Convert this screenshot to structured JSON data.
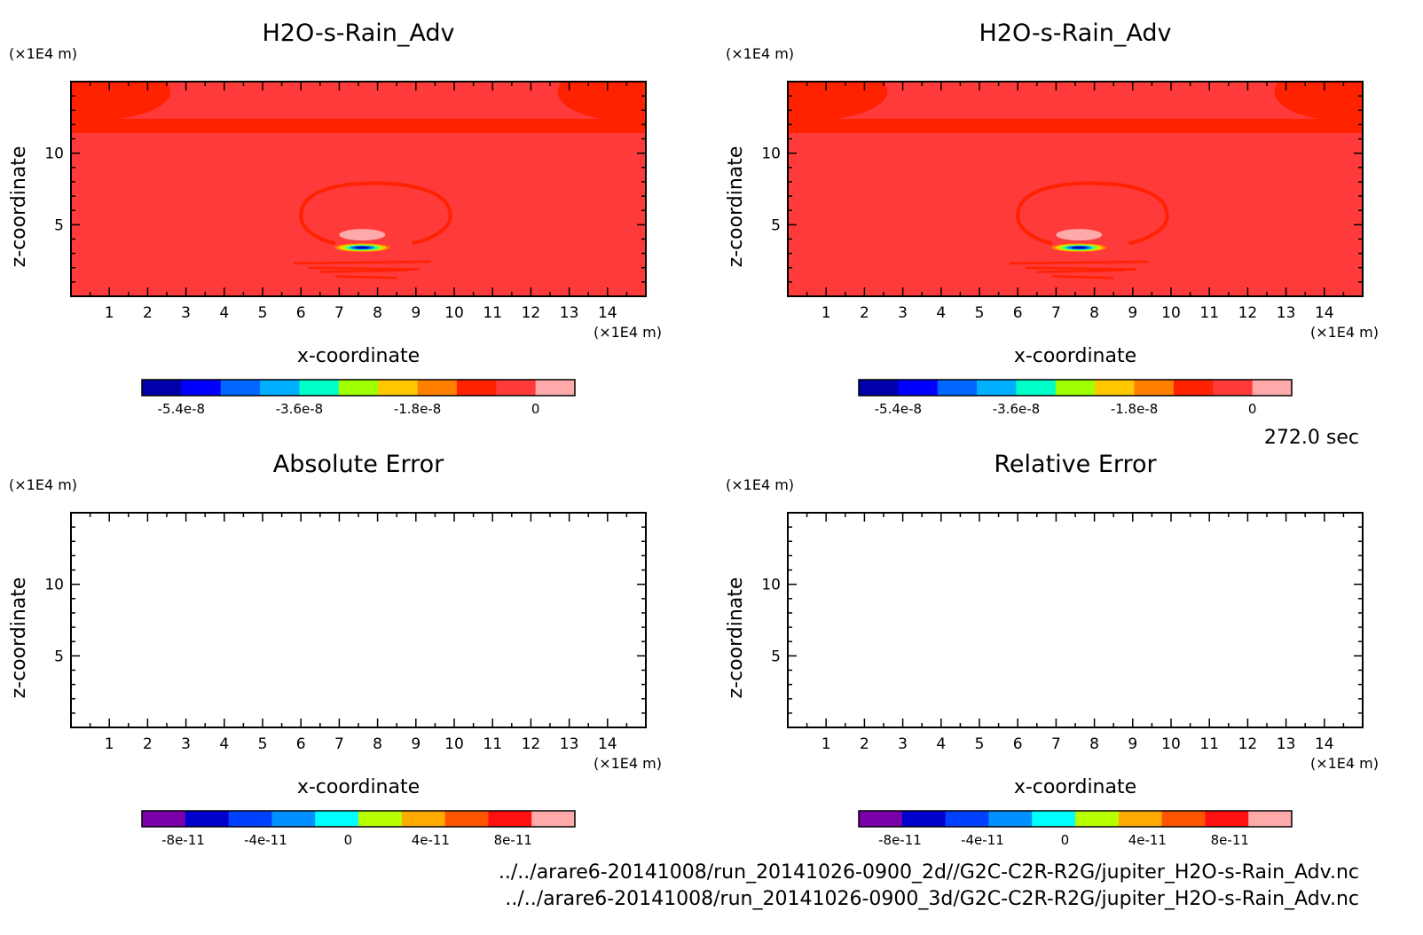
{
  "time_label": "272.0 sec",
  "files": [
    "../../arare6-20141008/run_20141026-0900_2d//G2C-C2R-R2G/jupiter_H2O-s-Rain_Adv.nc",
    "../../arare6-20141008/run_20141026-0900_3d/G2C-C2R-R2G/jupiter_H2O-s-Rain_Adv.nc"
  ],
  "colors": {
    "field_background": "#ff3a3a",
    "field_band": "#ff2200",
    "field_highlight": "#ffaaaa",
    "frame": "#000000"
  },
  "chart_data": [
    {
      "type": "heatmap",
      "title": "H2O-s-Rain_Adv",
      "xlabel": "x-coordinate",
      "ylabel": "z-coordinate",
      "x_unit": "(×1E4 m)",
      "y_unit": "(×1E4 m)",
      "xlim": [
        0,
        15
      ],
      "ylim": [
        0,
        15
      ],
      "xticks": [
        1,
        2,
        3,
        4,
        5,
        6,
        7,
        8,
        9,
        10,
        11,
        12,
        13,
        14
      ],
      "yticks": [
        5,
        10
      ],
      "filled": true,
      "colorbar": {
        "colors": [
          "#0000aa",
          "#0000ff",
          "#0066ff",
          "#00b0ff",
          "#00ffc8",
          "#a0ff00",
          "#ffc800",
          "#ff8000",
          "#ff2200",
          "#ff3a3a",
          "#ffaaaa"
        ],
        "ticks": [
          "-5.4e-8",
          "-3.6e-8",
          "-1.8e-8",
          "0"
        ],
        "tick_values": [
          -5.4e-08,
          -3.6e-08,
          -1.8e-08,
          0
        ],
        "range": [
          -6e-08,
          6e-09
        ]
      }
    },
    {
      "type": "heatmap",
      "title": "H2O-s-Rain_Adv",
      "xlabel": "x-coordinate",
      "ylabel": "z-coordinate",
      "x_unit": "(×1E4 m)",
      "y_unit": "(×1E4 m)",
      "xlim": [
        0,
        15
      ],
      "ylim": [
        0,
        15
      ],
      "xticks": [
        1,
        2,
        3,
        4,
        5,
        6,
        7,
        8,
        9,
        10,
        11,
        12,
        13,
        14
      ],
      "yticks": [
        5,
        10
      ],
      "filled": true,
      "colorbar": {
        "colors": [
          "#0000aa",
          "#0000ff",
          "#0066ff",
          "#00b0ff",
          "#00ffc8",
          "#a0ff00",
          "#ffc800",
          "#ff8000",
          "#ff2200",
          "#ff3a3a",
          "#ffaaaa"
        ],
        "ticks": [
          "-5.4e-8",
          "-3.6e-8",
          "-1.8e-8",
          "0"
        ],
        "tick_values": [
          -5.4e-08,
          -3.6e-08,
          -1.8e-08,
          0
        ],
        "range": [
          -6e-08,
          6e-09
        ]
      }
    },
    {
      "type": "heatmap",
      "title": "Absolute Error",
      "xlabel": "x-coordinate",
      "ylabel": "z-coordinate",
      "x_unit": "(×1E4 m)",
      "y_unit": "(×1E4 m)",
      "xlim": [
        0,
        15
      ],
      "ylim": [
        0,
        15
      ],
      "xticks": [
        1,
        2,
        3,
        4,
        5,
        6,
        7,
        8,
        9,
        10,
        11,
        12,
        13,
        14
      ],
      "yticks": [
        5,
        10
      ],
      "filled": false,
      "colorbar": {
        "colors": [
          "#7a00aa",
          "#0000cc",
          "#0040ff",
          "#0090ff",
          "#00ffff",
          "#b8ff00",
          "#ffaa00",
          "#ff5500",
          "#ff1010",
          "#ffaaaa"
        ],
        "ticks": [
          "-8e-11",
          "-4e-11",
          "0",
          "4e-11",
          "8e-11"
        ],
        "tick_values": [
          -8e-11,
          -4e-11,
          0,
          4e-11,
          8e-11
        ],
        "range": [
          -1e-10,
          1.1e-10
        ]
      }
    },
    {
      "type": "heatmap",
      "title": "Relative Error",
      "xlabel": "x-coordinate",
      "ylabel": "z-coordinate",
      "x_unit": "(×1E4 m)",
      "y_unit": "(×1E4 m)",
      "xlim": [
        0,
        15
      ],
      "ylim": [
        0,
        15
      ],
      "xticks": [
        1,
        2,
        3,
        4,
        5,
        6,
        7,
        8,
        9,
        10,
        11,
        12,
        13,
        14
      ],
      "yticks": [
        5,
        10
      ],
      "filled": false,
      "colorbar": {
        "colors": [
          "#7a00aa",
          "#0000cc",
          "#0040ff",
          "#0090ff",
          "#00ffff",
          "#b8ff00",
          "#ffaa00",
          "#ff5500",
          "#ff1010",
          "#ffaaaa"
        ],
        "ticks": [
          "-8e-11",
          "-4e-11",
          "0",
          "4e-11",
          "8e-11"
        ],
        "tick_values": [
          -8e-11,
          -4e-11,
          0,
          4e-11,
          8e-11
        ],
        "range": [
          -1e-10,
          1.1e-10
        ]
      }
    }
  ]
}
